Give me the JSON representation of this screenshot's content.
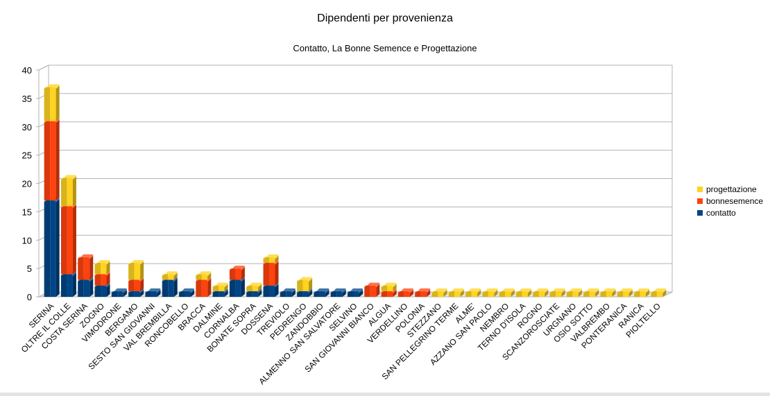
{
  "chart_data": {
    "type": "bar",
    "stacked": true,
    "three_d": true,
    "title": "Dipendenti per provenienza",
    "subtitle": "Contatto, La Bonne Semence e Progettazione",
    "ylim": [
      0,
      40
    ],
    "yticks": [
      0,
      5,
      10,
      15,
      20,
      25,
      30,
      35,
      40
    ],
    "grid": true,
    "legend_position": "right",
    "categories": [
      "SERINA",
      "OLTRE IL COLLE",
      "COSTA SERINA",
      "ZOGNO",
      "VIMODRONE",
      "BERGAMO",
      "SESTO SAN GIOVANNI",
      "VAL BREMBILLA",
      "RONCOBELLO",
      "BRACCA",
      "DALMINE",
      "CORNALBA",
      "BONATE SOPRA",
      "DOSSENA",
      "TREVIOLO",
      "PEDRENGO",
      "ZANDOBBIO",
      "ALMENNO SAN SALVATORE",
      "SELVINO",
      "SAN GIOVANNI BIANCO",
      "ALGUA",
      "VERDELLINO",
      "POLONIA",
      "STEZZANO",
      "SAN PELLEGRINO TERME",
      "ALME'",
      "AZZANO SAN PAOLO",
      "NEMBRO",
      "TERNO D'ISOLA",
      "ROGNO",
      "SCANZOROSCIATE",
      "URGNANO",
      "OSIO SOTTO",
      "VALBREMBO",
      "PONTERANICA",
      "RANICA",
      "PIOLTELLO"
    ],
    "series": [
      {
        "name": "contatto",
        "color": "#004586",
        "values": [
          17,
          4,
          3,
          2,
          1,
          1,
          1,
          3,
          1,
          0,
          1,
          3,
          1,
          2,
          1,
          1,
          1,
          1,
          1,
          0,
          0,
          0,
          0,
          0,
          0,
          0,
          0,
          0,
          0,
          0,
          0,
          0,
          0,
          0,
          0,
          0,
          0
        ]
      },
      {
        "name": "bonnesemence",
        "color": "#ff420e",
        "values": [
          14,
          12,
          4,
          2,
          0,
          2,
          0,
          0,
          0,
          3,
          0,
          2,
          0,
          4,
          0,
          0,
          0,
          0,
          0,
          2,
          1,
          1,
          1,
          0,
          0,
          0,
          0,
          0,
          0,
          0,
          0,
          0,
          0,
          0,
          0,
          0,
          0
        ]
      },
      {
        "name": "progettazione",
        "color": "#ffd320",
        "values": [
          6,
          5,
          0,
          2,
          0,
          3,
          0,
          1,
          0,
          1,
          1,
          0,
          1,
          1,
          0,
          2,
          0,
          0,
          0,
          0,
          1,
          0,
          0,
          1,
          1,
          1,
          1,
          1,
          1,
          1,
          1,
          1,
          1,
          1,
          1,
          1,
          1
        ]
      }
    ]
  }
}
